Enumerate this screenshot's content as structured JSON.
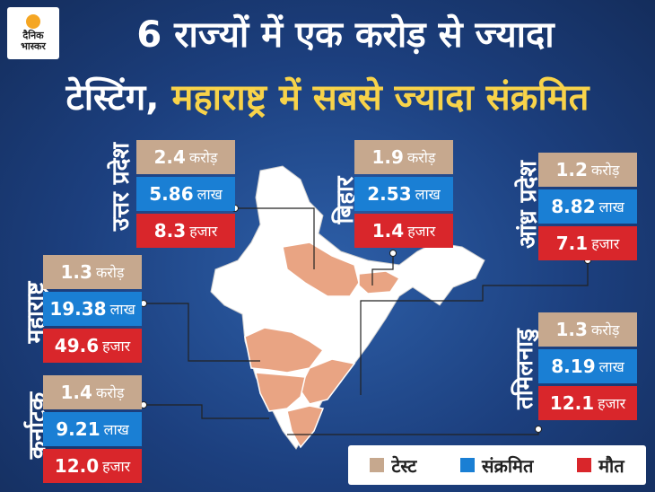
{
  "logo": {
    "line1": "दैनिक",
    "line2": "भास्कर"
  },
  "title": {
    "line1": "6 राज्यों में एक करोड़ से ज्यादा",
    "line2_part1": "टेस्टिंग,",
    "line2_part2": "महाराष्ट्र में सबसे ज्यादा संक्रमित"
  },
  "colors": {
    "test": "#c6a88e",
    "infected": "#1a7fd4",
    "deaths": "#d9262b",
    "highlight": "#f8d34a",
    "map_highlight": "#e9a483"
  },
  "states": {
    "up": {
      "name": "उत्तर प्रदेश",
      "test_value": "2.4",
      "test_unit": "करोड़",
      "infected_value": "5.86",
      "infected_unit": "लाख",
      "deaths_value": "8.3",
      "deaths_unit": "हजार"
    },
    "bihar": {
      "name": "बिहार",
      "test_value": "1.9",
      "test_unit": "करोड़",
      "infected_value": "2.53",
      "infected_unit": "लाख",
      "deaths_value": "1.4",
      "deaths_unit": "हजार"
    },
    "ap": {
      "name": "आंध्र प्रदेश",
      "test_value": "1.2",
      "test_unit": "करोड़",
      "infected_value": "8.82",
      "infected_unit": "लाख",
      "deaths_value": "7.1",
      "deaths_unit": "हजार"
    },
    "mh": {
      "name": "महाराष्ट्र",
      "test_value": "1.3",
      "test_unit": "करोड़",
      "infected_value": "19.38",
      "infected_unit": "लाख",
      "deaths_value": "49.6",
      "deaths_unit": "हजार"
    },
    "tn": {
      "name": "तमिलनाडु",
      "test_value": "1.3",
      "test_unit": "करोड़",
      "infected_value": "8.19",
      "infected_unit": "लाख",
      "deaths_value": "12.1",
      "deaths_unit": "हजार"
    },
    "ka": {
      "name": "कर्नाटक",
      "test_value": "1.4",
      "test_unit": "करोड़",
      "infected_value": "9.21",
      "infected_unit": "लाख",
      "deaths_value": "12.0",
      "deaths_unit": "हजार"
    }
  },
  "legend": {
    "test": "टेस्ट",
    "infected": "संक्रमित",
    "deaths": "मौत"
  }
}
